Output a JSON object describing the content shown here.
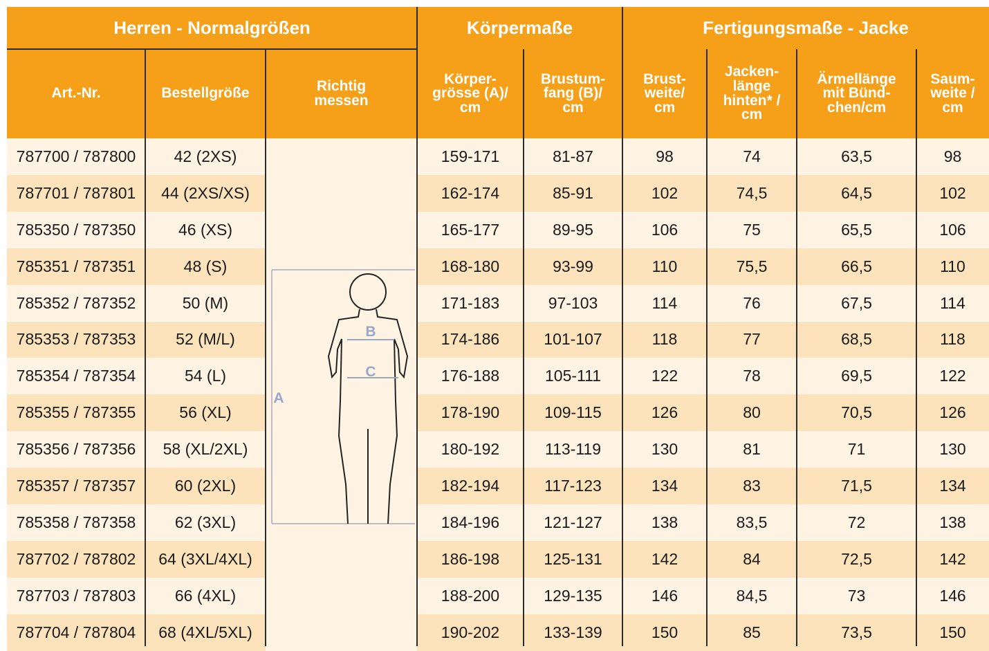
{
  "header": {
    "groups": [
      "Herren - Normalgrößen",
      "Körpermaße",
      "Fertigungsmaße - Jacke"
    ],
    "columns": [
      "Art.-Nr.",
      "Bestellgröße",
      "Richtig\nmessen",
      "Körper-\ngrösse (A)/\ncm",
      "Brustum-\nfang  (B)/\ncm",
      "Brust-\nweite/\ncm",
      "Jacken-\nlänge\nhinten* /\ncm",
      "Ärmellänge\nmit Bünd-\nchen/cm",
      "Saum-\nweite /\ncm"
    ]
  },
  "table": {
    "rows": [
      [
        "787700 / 787800",
        "42 (2XS)",
        "159-171",
        "81-87",
        "98",
        "74",
        "63,5",
        "98"
      ],
      [
        "787701 / 787801",
        "44 (2XS/XS)",
        "162-174",
        "85-91",
        "102",
        "74,5",
        "64,5",
        "102"
      ],
      [
        "785350 / 787350",
        "46 (XS)",
        "165-177",
        "89-95",
        "106",
        "75",
        "65,5",
        "106"
      ],
      [
        "785351 / 787351",
        "48 (S)",
        "168-180",
        "93-99",
        "110",
        "75,5",
        "66,5",
        "110"
      ],
      [
        "785352 / 787352",
        "50 (M)",
        "171-183",
        "97-103",
        "114",
        "76",
        "67,5",
        "114"
      ],
      [
        "785353 / 787353",
        "52 (M/L)",
        "174-186",
        "101-107",
        "118",
        "77",
        "68,5",
        "118"
      ],
      [
        "785354 / 787354",
        "54 (L)",
        "176-188",
        "105-111",
        "122",
        "78",
        "69,5",
        "122"
      ],
      [
        "785355 / 787355",
        "56 (XL)",
        "178-190",
        "109-115",
        "126",
        "80",
        "70,5",
        "126"
      ],
      [
        "785356 / 787356",
        "58 (XL/2XL)",
        "180-192",
        "113-119",
        "130",
        "81",
        "71",
        "130"
      ],
      [
        "785357 / 787357",
        "60 (2XL)",
        "182-194",
        "117-123",
        "134",
        "83",
        "71,5",
        "134"
      ],
      [
        "785358 / 787358",
        "62 (3XL)",
        "184-196",
        "121-127",
        "138",
        "83,5",
        "72",
        "138"
      ],
      [
        "787702 / 787802",
        "64 (3XL/4XL)",
        "186-198",
        "125-131",
        "142",
        "84",
        "72,5",
        "142"
      ],
      [
        "787703 / 787803",
        "66 (4XL)",
        "188-200",
        "129-135",
        "146",
        "84,5",
        "73",
        "146"
      ],
      [
        "787704 / 787804",
        "68 (4XL/5XL)",
        "190-202",
        "133-139",
        "150",
        "85",
        "73,5",
        "150"
      ]
    ]
  },
  "figure": {
    "labels": [
      "A",
      "B",
      "C"
    ]
  }
}
